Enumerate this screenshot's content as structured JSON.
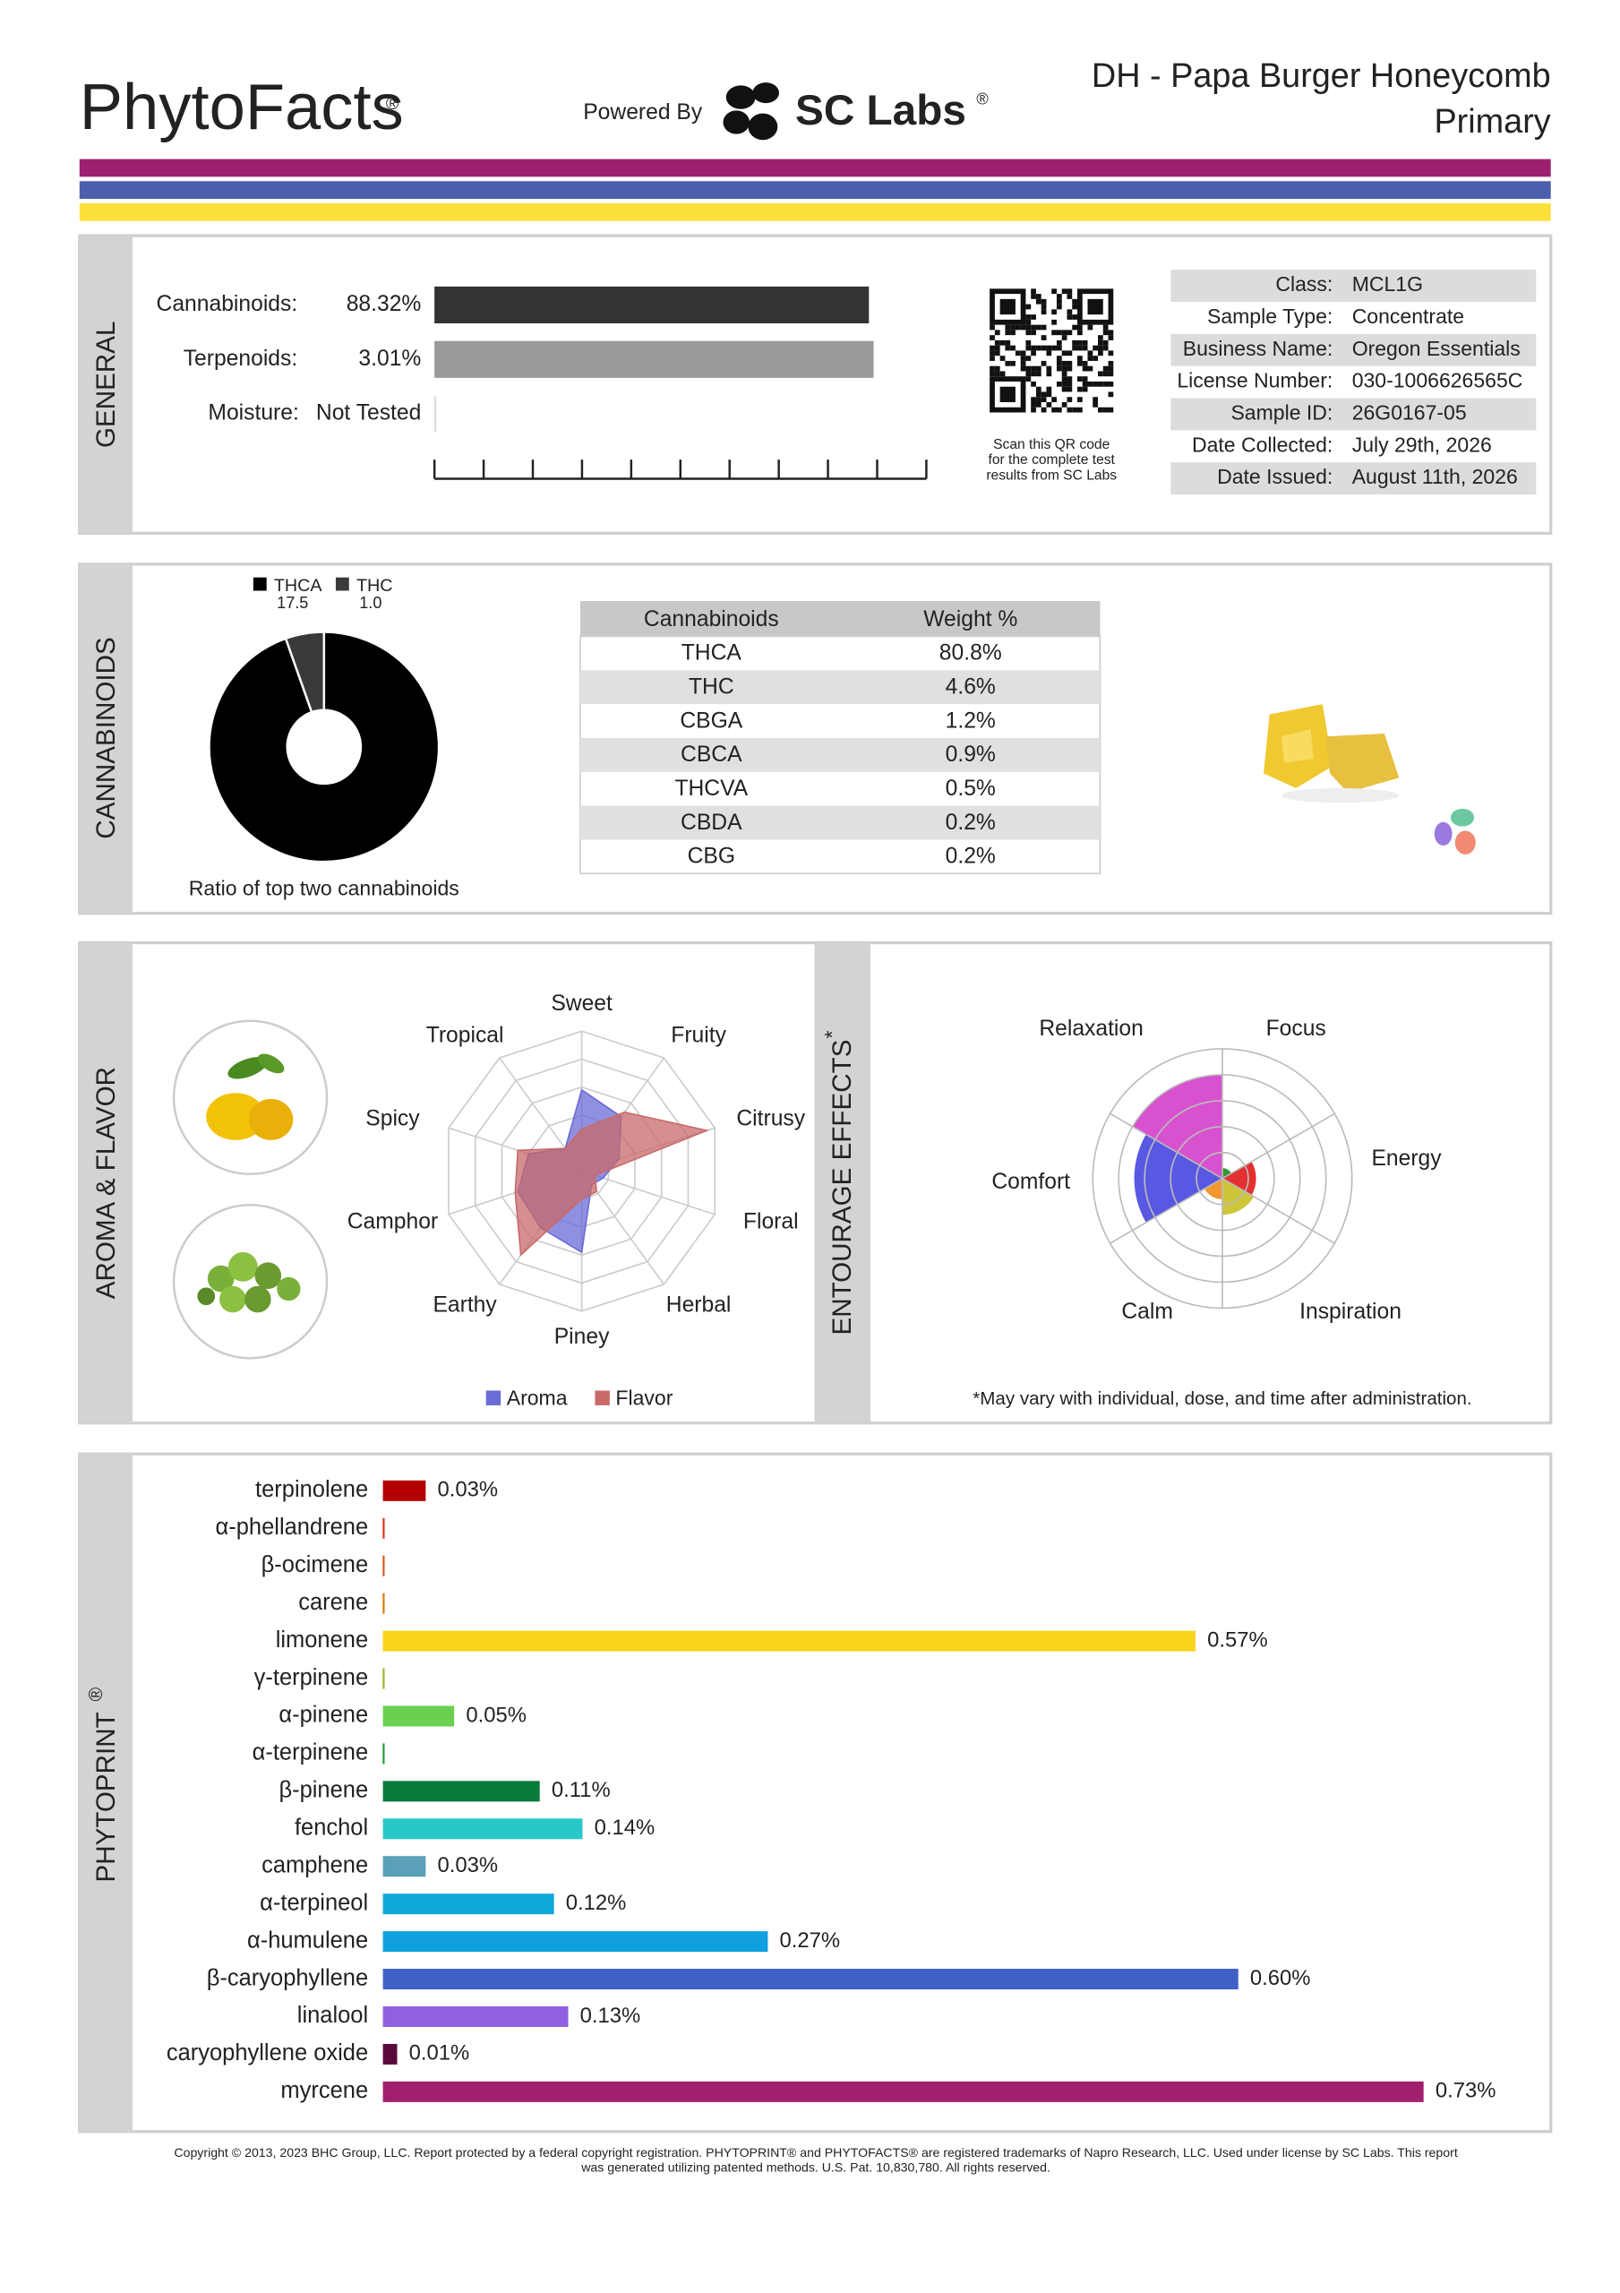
{
  "header": {
    "logo": "PhytoFacts",
    "logo_mark": "®",
    "powered_by": "Powered By",
    "lab": "SC Labs",
    "lab_mark": "®",
    "title": "DH - Papa Burger Honeycomb",
    "subtitle": "Primary"
  },
  "general": {
    "section": "GENERAL",
    "rows": [
      {
        "label": "Cannabinoids:",
        "value": 88.32,
        "value_label": "88.32%",
        "color": "#333333"
      },
      {
        "label": "Terpenoids:",
        "value": 3.01,
        "value_label": "3.01%",
        "color": "#999999"
      },
      {
        "label": "Moisture:",
        "value": null,
        "value_label": "Not Tested",
        "color": "#dddddd"
      }
    ],
    "qr_caption": [
      "Scan this QR code",
      "for the complete test",
      "results from SC Labs"
    ],
    "info": [
      [
        "Class:",
        "MCL1G"
      ],
      [
        "Sample Type:",
        "Concentrate"
      ],
      [
        "Business Name:",
        "Oregon Essentials"
      ],
      [
        "License Number:",
        "030-1006626565C"
      ],
      [
        "Sample ID:",
        "26G0167-05"
      ],
      [
        "Date Collected:",
        "July 29th, 2026"
      ],
      [
        "Date Issued:",
        "August 11th, 2026"
      ]
    ]
  },
  "cannabinoids": {
    "section": "CANNABINOIDS",
    "pie": {
      "slices": [
        {
          "name": "THCA",
          "value": 17.5,
          "color": "#000000"
        },
        {
          "name": "THC",
          "value": 1.0,
          "value_label": "1.0",
          "color": "#3a3a3a"
        }
      ],
      "caption": "Ratio of top two cannabinoids"
    },
    "table": {
      "header": [
        "Cannabinoids",
        "Weight %"
      ],
      "rows": [
        [
          "THCA",
          "80.8%"
        ],
        [
          "THC",
          "4.6%"
        ],
        [
          "CBGA",
          "1.2%"
        ],
        [
          "CBCA",
          "0.9%"
        ],
        [
          "THCVA",
          "0.5%"
        ],
        [
          "CBDA",
          "0.2%"
        ],
        [
          "CBG",
          "0.2%"
        ]
      ]
    }
  },
  "aroma": {
    "section": "AROMA & FLAVOR",
    "axes": [
      "Sweet",
      "Fruity",
      "Citrusy",
      "Floral",
      "Herbal",
      "Piney",
      "Earthy",
      "Camphor",
      "Spicy",
      "Tropical"
    ],
    "rlim": [
      0,
      5
    ],
    "series": [
      {
        "name": "Aroma",
        "color": "#6b6bd6",
        "values": [
          2.9,
          2.4,
          1.4,
          0.8,
          0.6,
          2.9,
          2.5,
          2.4,
          2.0,
          1.0
        ]
      },
      {
        "name": "Flavor",
        "color": "#c86a6a",
        "values": [
          1.5,
          2.6,
          4.7,
          0.5,
          0.9,
          1.0,
          3.7,
          2.5,
          2.4,
          1.0
        ]
      }
    ]
  },
  "effects": {
    "section": "ENTOURAGE EFFECTS",
    "section_mark": "*",
    "rlim": [
      0,
      5
    ],
    "items": [
      {
        "name": "Focus",
        "color": "#1e8c1e",
        "value": 0.4
      },
      {
        "name": "Energy",
        "color": "#e01a1a",
        "value": 1.3
      },
      {
        "name": "Inspiration",
        "color": "#c8c024",
        "value": 1.4
      },
      {
        "name": "Calm",
        "color": "#f08c1a",
        "value": 0.8
      },
      {
        "name": "Comfort",
        "color": "#4646e0",
        "value": 3.4
      },
      {
        "name": "Relaxation",
        "color": "#d43fca",
        "value": 4.0
      }
    ],
    "note": "*May vary with individual, dose, and time after administration."
  },
  "phytoprint": {
    "section": "PHYTOPRINT",
    "section_mark": "®",
    "terpenes": [
      {
        "name": "terpinolene",
        "color": "#b30000",
        "value": 0.03,
        "value_label": "0.03%"
      },
      {
        "name": "α-phellandrene",
        "color": "#e0301e",
        "value": 0,
        "value_label": null
      },
      {
        "name": "β-ocimene",
        "color": "#d9531e",
        "value": 0,
        "value_label": null
      },
      {
        "name": "carene",
        "color": "#d97a00",
        "value": 0,
        "value_label": null
      },
      {
        "name": "limonene",
        "color": "#f8d41c",
        "label_color": "#b89a00",
        "value": 0.57,
        "value_label": "0.57%"
      },
      {
        "name": "γ-terpinene",
        "color": "#a0b020",
        "label_color": "#7a8a10",
        "value": 0,
        "value_label": null
      },
      {
        "name": "α-pinene",
        "color": "#6ad050",
        "label_color": "#3a9a3a",
        "value": 0.05,
        "value_label": "0.05%"
      },
      {
        "name": "α-terpinene",
        "color": "#1e9a30",
        "value": 0,
        "value_label": null
      },
      {
        "name": "β-pinene",
        "color": "#0a7a3a",
        "value": 0.11,
        "value_label": "0.11%"
      },
      {
        "name": "fenchol",
        "color": "#28c8c8",
        "label_color": "#1a9a9a",
        "value": 0.14,
        "value_label": "0.14%"
      },
      {
        "name": "camphene",
        "color": "#5aa0b8",
        "label_color": "#2a8090",
        "value": 0.03,
        "value_label": "0.03%"
      },
      {
        "name": "α-terpineol",
        "color": "#10a8d8",
        "label_color": "#1a8ab8",
        "value": 0.12,
        "value_label": "0.12%"
      },
      {
        "name": "α-humulene",
        "color": "#10a0e0",
        "label_color": "#1a80c8",
        "value": 0.27,
        "value_label": "0.27%"
      },
      {
        "name": "β-caryophyllene",
        "color": "#4060c8",
        "value": 0.6,
        "value_label": "0.60%"
      },
      {
        "name": "linalool",
        "color": "#9060e0",
        "value": 0.13,
        "value_label": "0.13%"
      },
      {
        "name": "caryophyllene oxide",
        "color": "#5a0a3a",
        "value": 0.01,
        "value_label": "0.01%"
      },
      {
        "name": "myrcene",
        "color": "#a0206e",
        "value": 0.73,
        "value_label": "0.73%"
      }
    ]
  },
  "footer": {
    "copyright": [
      "Copyright © 2013, 2023 BHC Group, LLC. Report protected by a federal copyright registration. PHYTOPRINT® and PHYTOFACTS® are registered trademarks of Napro Research, LLC. Used under license by SC Labs. This report",
      "was generated utilizing patented methods. U.S. Pat. 10,830,780. All rights reserved."
    ]
  }
}
